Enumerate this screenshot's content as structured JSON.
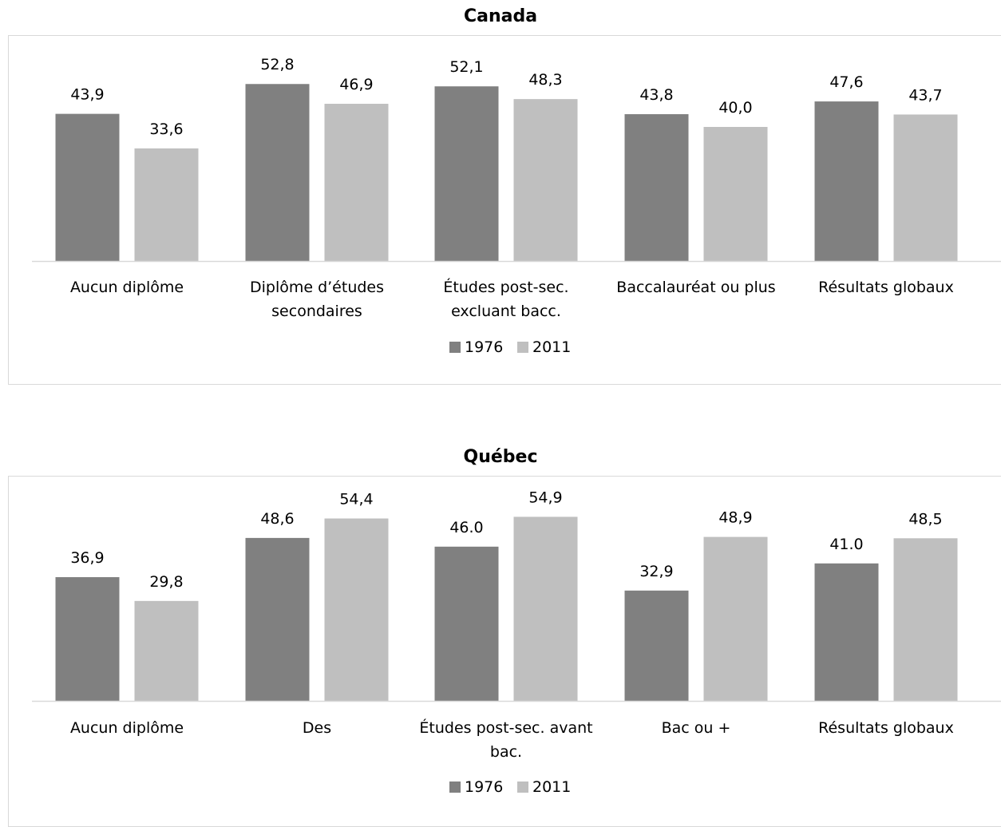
{
  "chart_data": [
    {
      "type": "bar",
      "title": "Canada",
      "categories": [
        [
          "Aucun diplôme"
        ],
        [
          "Diplôme d’études",
          "secondaires"
        ],
        [
          "Études post-sec.",
          "excluant bacc."
        ],
        [
          "Baccalauréat ou plus"
        ],
        [
          "Résultats globaux"
        ]
      ],
      "series": [
        {
          "name": "1976",
          "color": "#808080",
          "values": [
            43.9,
            52.8,
            52.1,
            43.8,
            47.6
          ],
          "labels": [
            "43,9",
            "52,8",
            "52,1",
            "43,8",
            "47,6"
          ]
        },
        {
          "name": "2011",
          "color": "#bfbfbf",
          "values": [
            33.6,
            46.9,
            48.3,
            40.0,
            43.7
          ],
          "labels": [
            "33,6",
            "46,9",
            "48,3",
            "40,0",
            "43,7"
          ]
        }
      ],
      "ylim": [
        0,
        60
      ],
      "legend": "bottom",
      "grid": false,
      "xlabel": "",
      "ylabel": ""
    },
    {
      "type": "bar",
      "title": "Québec",
      "categories": [
        [
          "Aucun diplôme"
        ],
        [
          "Des"
        ],
        [
          "Études post-sec. avant",
          "bac."
        ],
        [
          "Bac ou +"
        ],
        [
          "Résultats globaux"
        ]
      ],
      "series": [
        {
          "name": "1976",
          "color": "#808080",
          "values": [
            36.9,
            48.6,
            46.0,
            32.9,
            41.0
          ],
          "labels": [
            "36,9",
            "48,6",
            "46.0",
            "32,9",
            "41.0"
          ]
        },
        {
          "name": "2011",
          "color": "#bfbfbf",
          "values": [
            29.8,
            54.4,
            54.9,
            48.9,
            48.5
          ],
          "labels": [
            "29,8",
            "54,4",
            "54,9",
            "48,9",
            "48,5"
          ]
        }
      ],
      "ylim": [
        0,
        60
      ],
      "legend": "bottom",
      "grid": false,
      "xlabel": "",
      "ylabel": ""
    }
  ]
}
